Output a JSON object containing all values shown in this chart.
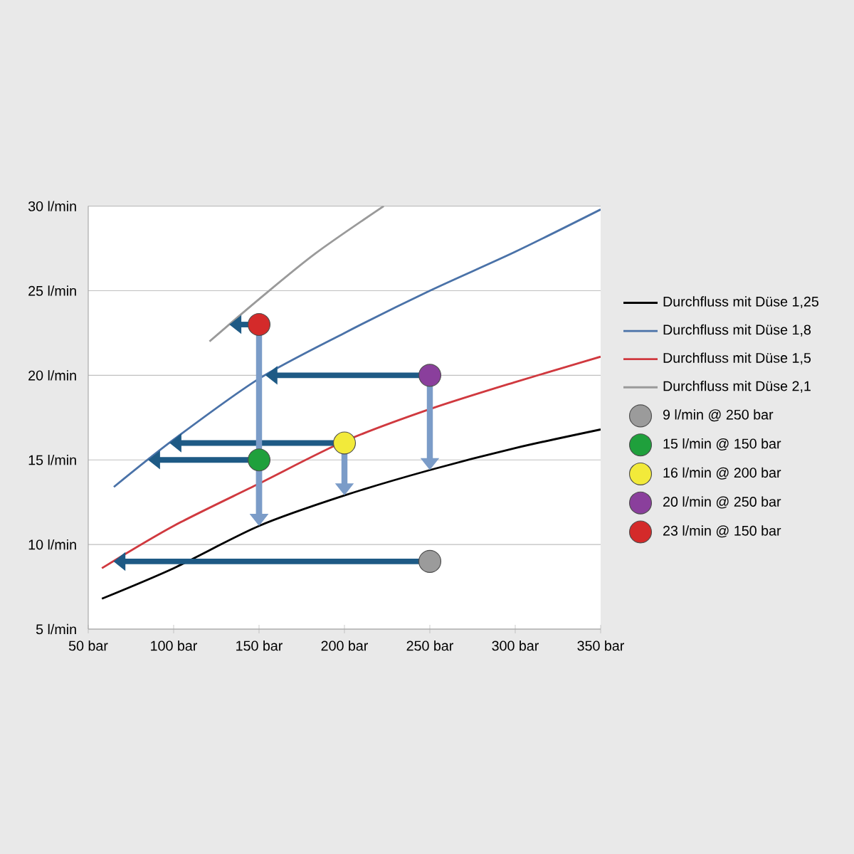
{
  "chart_data": {
    "type": "line",
    "xlim": [
      50,
      350
    ],
    "ylim": [
      5,
      30
    ],
    "xticks": [
      {
        "value": 50,
        "label": "50 bar"
      },
      {
        "value": 100,
        "label": "100 bar"
      },
      {
        "value": 150,
        "label": "150 bar"
      },
      {
        "value": 200,
        "label": "200 bar"
      },
      {
        "value": 250,
        "label": "250 bar"
      },
      {
        "value": 300,
        "label": "300 bar"
      },
      {
        "value": 350,
        "label": "350 bar"
      }
    ],
    "yticks": [
      {
        "value": 5,
        "label": "5 l/min"
      },
      {
        "value": 10,
        "label": "10 l/min"
      },
      {
        "value": 15,
        "label": "15 l/min"
      },
      {
        "value": 20,
        "label": "20 l/min"
      },
      {
        "value": 25,
        "label": "25 l/min"
      },
      {
        "value": 30,
        "label": "30 l/min"
      }
    ],
    "grid": "y",
    "legend": "right",
    "series": [
      {
        "name": "Durchfluss mit Düse 1,25",
        "color": "#000000",
        "x": [
          58,
          100,
          150,
          200,
          250,
          300,
          350
        ],
        "values": [
          6.8,
          8.6,
          11.1,
          12.9,
          14.4,
          15.7,
          16.8
        ]
      },
      {
        "name": "Durchfluss mit Düse 1,8",
        "color": "#4a72a8",
        "x": [
          65,
          100,
          150,
          200,
          250,
          300,
          350
        ],
        "values": [
          13.4,
          16.2,
          19.8,
          22.5,
          25.0,
          27.3,
          29.8
        ]
      },
      {
        "name": "Durchfluss mit Düse 1,5",
        "color": "#d0393f",
        "x": [
          58,
          100,
          150,
          200,
          250,
          300,
          350
        ],
        "values": [
          8.6,
          11.1,
          13.6,
          16.1,
          18.0,
          19.6,
          21.1
        ]
      },
      {
        "name": "Durchfluss mit Düse 2,1",
        "color": "#9a9a9a",
        "x": [
          121,
          150,
          183,
          223
        ],
        "values": [
          22.0,
          24.5,
          27.2,
          30.0
        ]
      },
      {
        "name": "9 l/min @ 250 bar",
        "type": "scatter",
        "color": "#9b9b9b",
        "x": [
          250
        ],
        "values": [
          9
        ]
      },
      {
        "name": "15 l/min @ 150 bar",
        "type": "scatter",
        "color": "#1fa03c",
        "x": [
          150
        ],
        "values": [
          15
        ]
      },
      {
        "name": "16 l/min @ 200 bar",
        "type": "scatter",
        "color": "#f2ea3a",
        "x": [
          200
        ],
        "values": [
          16
        ]
      },
      {
        "name": "20 l/min @ 250 bar",
        "type": "scatter",
        "color": "#8a3f9c",
        "x": [
          250
        ],
        "values": [
          20
        ]
      },
      {
        "name": "23 l/min @ 150 bar",
        "type": "scatter",
        "color": "#d42a2a",
        "x": [
          150
        ],
        "values": [
          23
        ]
      }
    ]
  }
}
